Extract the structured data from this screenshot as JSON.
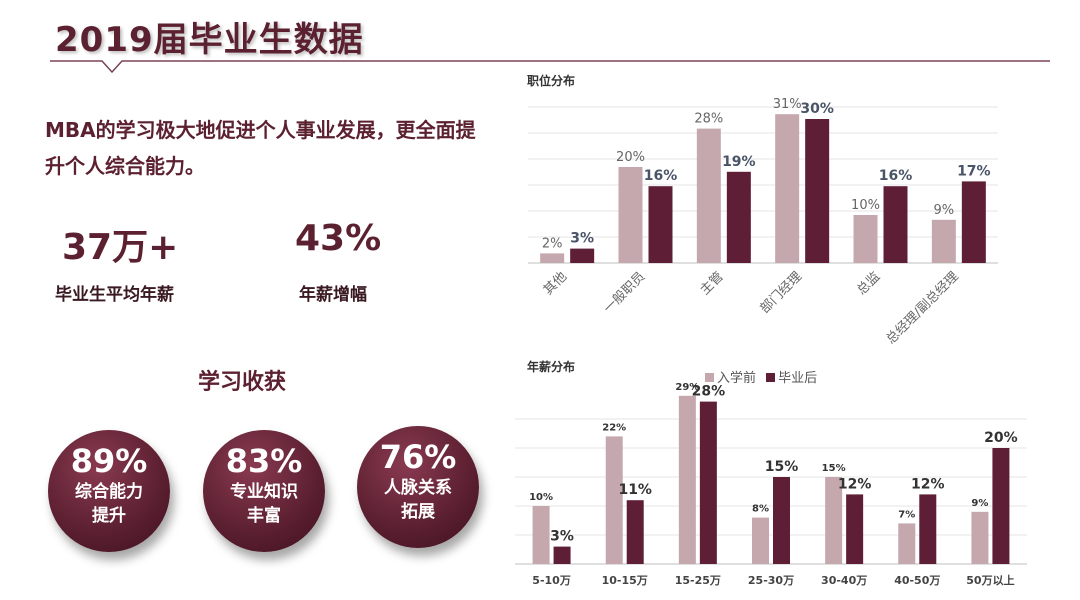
{
  "title": "2019届毕业生数据",
  "intro": "MBA的学习极大地促进个人事业发展，更全面提升个人综合能力。",
  "stats": [
    {
      "value": "37万+",
      "label": "毕业生平均年薪"
    },
    {
      "value": "43%",
      "label": "年薪增幅"
    }
  ],
  "gains": {
    "heading": "学习收获",
    "items": [
      {
        "value": "89%",
        "label": "综合能力\n提升"
      },
      {
        "value": "83%",
        "label": "专业知识\n丰富"
      },
      {
        "value": "76%",
        "label": "人脉关系\n拓展"
      }
    ]
  },
  "colors": {
    "before": "#c4a8ae",
    "after": "#5e1e36",
    "brand": "#5c2130"
  },
  "chart_data": [
    {
      "type": "bar",
      "title": "职位分布",
      "categories": [
        "其他",
        "一般职员",
        "主管",
        "部门经理",
        "总监",
        "总经理/副总经理"
      ],
      "series": [
        {
          "values": [
            2,
            20,
            28,
            31,
            10,
            9
          ]
        },
        {
          "values": [
            3,
            16,
            19,
            30,
            16,
            17
          ]
        }
      ],
      "ylim": [
        0,
        35
      ],
      "grid": true,
      "legend": "none"
    },
    {
      "type": "bar",
      "title": "年薪分布",
      "categories": [
        "5-10万",
        "10-15万",
        "15-25万",
        "25-30万",
        "30-40万",
        "40-50万",
        "50万以上"
      ],
      "series": [
        {
          "name": "入学前",
          "values": [
            10,
            22,
            29,
            8,
            15,
            7,
            9
          ]
        },
        {
          "name": "毕业后",
          "values": [
            3,
            11,
            28,
            15,
            12,
            12,
            20
          ]
        }
      ],
      "ylim": [
        0,
        30
      ],
      "grid": true,
      "legend": "top"
    }
  ]
}
